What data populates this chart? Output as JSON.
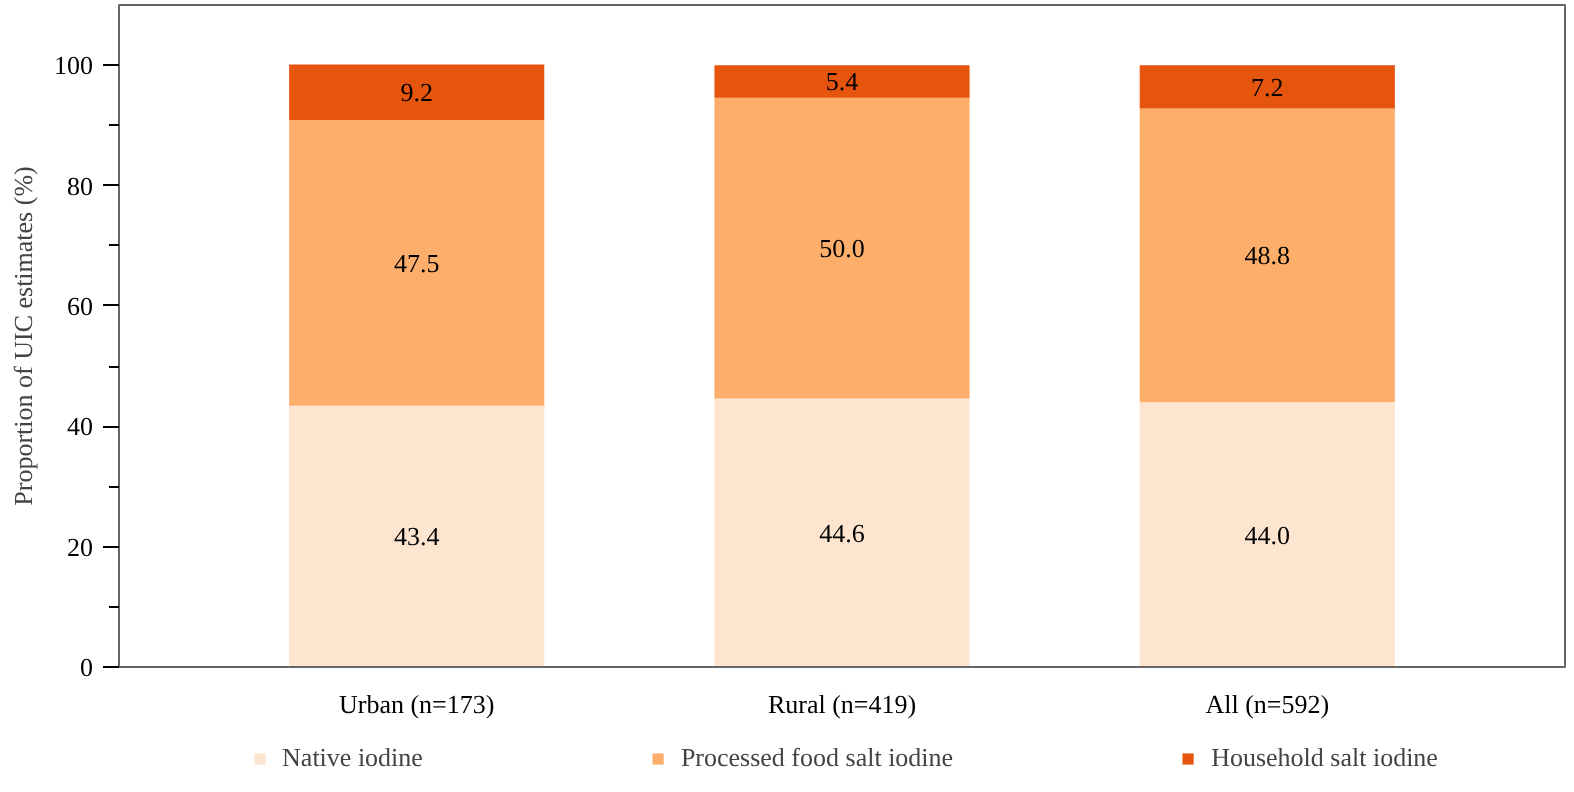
{
  "chart_data": {
    "type": "bar",
    "stacked": true,
    "ylabel": "Proportion of UIC estimates (%)",
    "categories": [
      "Urban (n=173)",
      "Rural (n=419)",
      "All (n=592)"
    ],
    "series": [
      {
        "name": "Native iodine",
        "color": "#fde5cf",
        "values": [
          43.4,
          44.6,
          44.0
        ],
        "value_labels": [
          "43.4",
          "44.6",
          "44.0"
        ]
      },
      {
        "name": "Processed food salt iodine",
        "color": "#fdae6b",
        "values": [
          47.5,
          50.0,
          48.8
        ],
        "value_labels": [
          "47.5",
          "50.0",
          "48.8"
        ]
      },
      {
        "name": "Household salt iodine",
        "color": "#e6550d",
        "values": [
          9.2,
          5.4,
          7.2
        ],
        "value_labels": [
          "9.2",
          "5.4",
          "7.2"
        ]
      }
    ],
    "ylim": [
      0,
      110
    ],
    "yticks": [
      0,
      {
        "value": 10,
        "label": null
      },
      20,
      {
        "value": 30,
        "label": null
      },
      40,
      {
        "value": 50,
        "label": null
      },
      60,
      {
        "value": 70,
        "label": null
      },
      80,
      {
        "value": 90,
        "label": null
      },
      100
    ],
    "data_labels": true,
    "grid": false,
    "legend": "bottom"
  }
}
